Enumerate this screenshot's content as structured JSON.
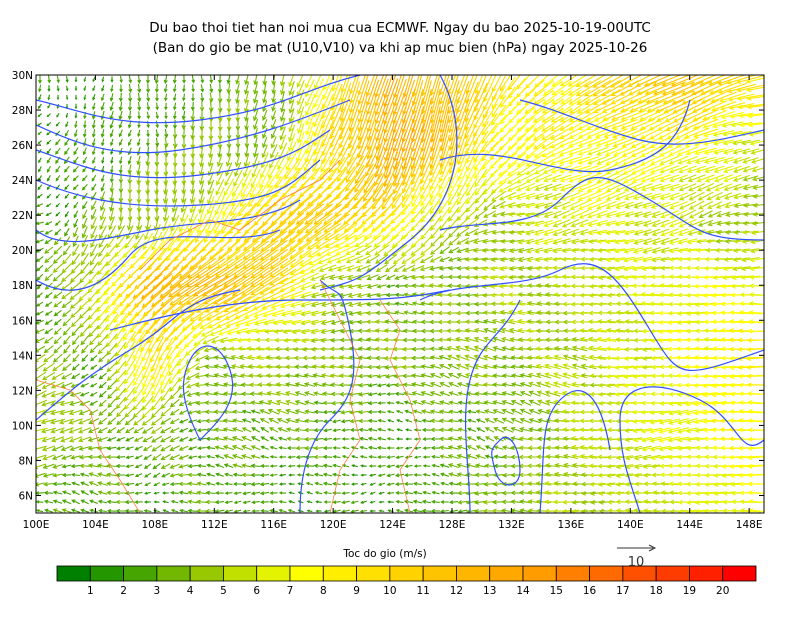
{
  "title_line1": "Du bao thoi tiet han noi mua cua ECMWF. Ngay du bao 2025-10-19-00UTC",
  "title_line2": "(Ban do gio be mat (U10,V10) va khi ap muc bien (hPa) ngay 2025-10-26",
  "chart_data": {
    "type": "vector-field",
    "title": "Du bao thoi tiet han noi mua cua ECMWF. Ngay du bao 2025-10-19-00UTC (Ban do gio be mat (U10,V10) va khi ap muc bien (hPa) ngay 2025-10-26",
    "xlim": [
      100,
      149
    ],
    "ylim": [
      5,
      30
    ],
    "x_ticks": [
      "100E",
      "104E",
      "108E",
      "112E",
      "116E",
      "120E",
      "124E",
      "128E",
      "132E",
      "136E",
      "140E",
      "144E",
      "148E"
    ],
    "y_ticks": [
      "6N",
      "8N",
      "10N",
      "12N",
      "14N",
      "16N",
      "18N",
      "20N",
      "22N",
      "24N",
      "26N",
      "28N",
      "30N"
    ],
    "colorbar_label": "Toc do gio (m/s)",
    "colorbar_ticks": [
      "1",
      "2",
      "3",
      "4",
      "5",
      "6",
      "7",
      "8",
      "9",
      "10",
      "11",
      "12",
      "13",
      "14",
      "15",
      "16",
      "17",
      "18",
      "19",
      "20"
    ],
    "colorbar_colors": [
      "#008000",
      "#249600",
      "#46a500",
      "#72b800",
      "#97c800",
      "#c2e000",
      "#e4f400",
      "#ffff00",
      "#ffee00",
      "#ffe000",
      "#ffd200",
      "#ffc400",
      "#ffb600",
      "#ffa800",
      "#ff9c00",
      "#ff8000",
      "#ff6a00",
      "#ff5000",
      "#ff3c00",
      "#ff2000",
      "#ff0000"
    ],
    "reference_vector": {
      "value": 10,
      "label": "10"
    },
    "contour_color": "#3050ff",
    "coastline_color": "#ff8040",
    "grid_lons": [
      100,
      104,
      108,
      112,
      116,
      120,
      124,
      128,
      132,
      136,
      140,
      144,
      148
    ],
    "grid_lats": [
      30,
      26,
      22,
      18,
      14,
      10,
      6
    ],
    "u": [
      [
        0,
        0,
        0,
        0,
        -1,
        -3,
        -4,
        -3,
        -5,
        -7,
        -10,
        -11,
        -9
      ],
      [
        -1,
        -1,
        0,
        0,
        -1,
        -4,
        -4,
        -3,
        -6,
        -7,
        -7,
        -7,
        -6
      ],
      [
        -2,
        -1,
        0,
        -3,
        -8,
        -9,
        -6,
        -3,
        -5,
        -6,
        -6,
        -5,
        -4
      ],
      [
        -2,
        -4,
        -10,
        -11,
        -9,
        -4,
        -3,
        -4,
        -5,
        -5,
        -6,
        -7,
        -7
      ],
      [
        -3,
        -2,
        -4,
        -4,
        -5,
        -4,
        -4,
        -4,
        -4,
        -5,
        -6,
        -7,
        -8
      ],
      [
        -6,
        -3,
        -3,
        -3,
        -3,
        -3,
        -2,
        -3,
        -3,
        -5,
        -6,
        -7,
        -8
      ],
      [
        -2,
        -3,
        -2,
        -3,
        -2,
        -2,
        -2,
        -3,
        -4,
        -5,
        -5,
        -6,
        -7
      ]
    ],
    "v": [
      [
        -2,
        -2,
        -2,
        -3,
        -3,
        -8,
        -12,
        -11,
        -7,
        -5,
        -5,
        -5,
        -2
      ],
      [
        -1,
        -2,
        -3,
        -4,
        -4,
        -9,
        -13,
        -11,
        -5,
        -3,
        -3,
        -3,
        -1
      ],
      [
        -1,
        -3,
        -5,
        -6,
        -8,
        -6,
        -7,
        -4,
        -1,
        -2,
        -2,
        -2,
        -1
      ],
      [
        -1,
        -5,
        -8,
        -7,
        -5,
        -1,
        0,
        0,
        0,
        0,
        0,
        0,
        0
      ],
      [
        -2,
        -2,
        -9,
        0,
        1,
        0,
        0,
        1,
        1,
        1,
        0,
        0,
        0
      ],
      [
        -2,
        -1,
        -3,
        1,
        1,
        0,
        0,
        1,
        1,
        1,
        -1,
        -1,
        0
      ],
      [
        0,
        1,
        0,
        0,
        0,
        0,
        0,
        0,
        0,
        0,
        0,
        0,
        0
      ]
    ]
  }
}
